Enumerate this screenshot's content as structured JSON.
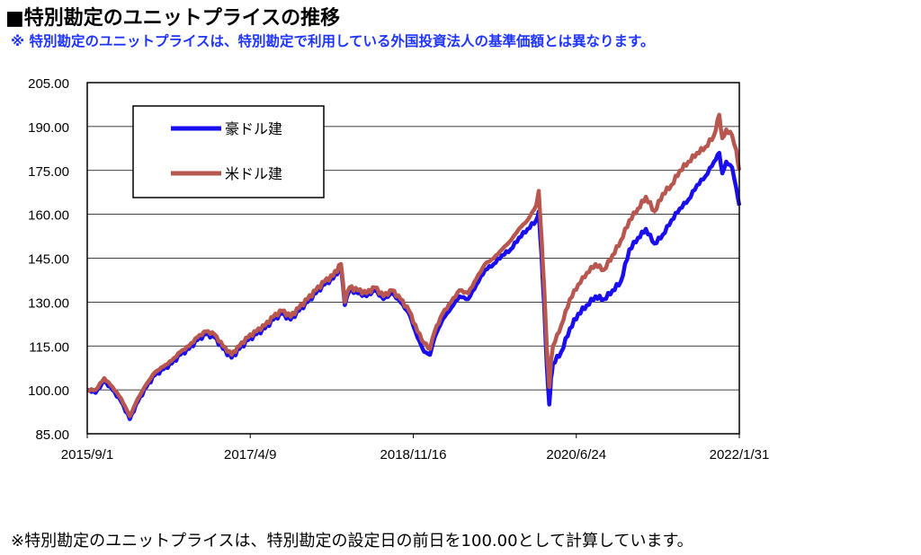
{
  "header": {
    "title": "■特別勘定のユニットプライスの推移",
    "subtitle": "※ 特別勘定のユニットプライスは、特別勘定で利用している外国投資法人の基準価額とは異なります。"
  },
  "footnote": "※特別勘定のユニットプライスは、特別勘定の設定日の前日を100.00として計算しています。",
  "chart_data": {
    "type": "line",
    "title": "",
    "xlabel": "",
    "ylabel": "",
    "x_ticks": [
      "2015/9/1",
      "2017/4/9",
      "2018/11/16",
      "2020/6/24",
      "2022/1/31"
    ],
    "y_ticks": [
      "85.00",
      "100.00",
      "115.00",
      "130.00",
      "145.00",
      "160.00",
      "175.00",
      "190.00",
      "205.00"
    ],
    "ylim": [
      85,
      205
    ],
    "xlim": [
      "2015-09-01",
      "2022-01-31"
    ],
    "grid": true,
    "legend_position": "top-left",
    "series": [
      {
        "name": "豪ドル建",
        "color": "#1a0df0",
        "points": [
          [
            "2015-09-01",
            100
          ],
          [
            "2015-10-01",
            99
          ],
          [
            "2015-11-01",
            103
          ],
          [
            "2015-12-01",
            100
          ],
          [
            "2016-01-01",
            96
          ],
          [
            "2016-02-01",
            90
          ],
          [
            "2016-03-01",
            96
          ],
          [
            "2016-04-01",
            101
          ],
          [
            "2016-05-01",
            105
          ],
          [
            "2016-06-01",
            107
          ],
          [
            "2016-07-01",
            109
          ],
          [
            "2016-08-01",
            112
          ],
          [
            "2016-09-01",
            114
          ],
          [
            "2016-10-01",
            117
          ],
          [
            "2016-11-01",
            119
          ],
          [
            "2016-12-01",
            118
          ],
          [
            "2017-01-01",
            114
          ],
          [
            "2017-02-01",
            111
          ],
          [
            "2017-03-01",
            114
          ],
          [
            "2017-04-01",
            117
          ],
          [
            "2017-05-01",
            119
          ],
          [
            "2017-06-01",
            121
          ],
          [
            "2017-07-01",
            124
          ],
          [
            "2017-08-01",
            126
          ],
          [
            "2017-09-01",
            124
          ],
          [
            "2017-10-01",
            127
          ],
          [
            "2017-11-01",
            130
          ],
          [
            "2017-12-01",
            133
          ],
          [
            "2018-01-01",
            136
          ],
          [
            "2018-02-01",
            138
          ],
          [
            "2018-03-01",
            142
          ],
          [
            "2018-03-15",
            129
          ],
          [
            "2018-04-01",
            134
          ],
          [
            "2018-05-01",
            133
          ],
          [
            "2018-06-01",
            132
          ],
          [
            "2018-07-01",
            134
          ],
          [
            "2018-08-01",
            131
          ],
          [
            "2018-09-01",
            133
          ],
          [
            "2018-10-01",
            130
          ],
          [
            "2018-11-01",
            126
          ],
          [
            "2018-12-01",
            118
          ],
          [
            "2018-12-25",
            113
          ],
          [
            "2019-01-15",
            112
          ],
          [
            "2019-02-01",
            118
          ],
          [
            "2019-03-01",
            124
          ],
          [
            "2019-04-01",
            128
          ],
          [
            "2019-05-01",
            132
          ],
          [
            "2019-06-01",
            131
          ],
          [
            "2019-07-01",
            136
          ],
          [
            "2019-08-01",
            141
          ],
          [
            "2019-09-01",
            143
          ],
          [
            "2019-10-01",
            146
          ],
          [
            "2019-11-01",
            148
          ],
          [
            "2019-12-01",
            152
          ],
          [
            "2020-01-01",
            155
          ],
          [
            "2020-02-01",
            158
          ],
          [
            "2020-02-10",
            161
          ],
          [
            "2020-02-20",
            146
          ],
          [
            "2020-03-01",
            128
          ],
          [
            "2020-03-10",
            108
          ],
          [
            "2020-03-19",
            95
          ],
          [
            "2020-03-25",
            104
          ],
          [
            "2020-04-01",
            109
          ],
          [
            "2020-05-01",
            113
          ],
          [
            "2020-06-01",
            121
          ],
          [
            "2020-07-01",
            126
          ],
          [
            "2020-08-01",
            129
          ],
          [
            "2020-09-01",
            132
          ],
          [
            "2020-10-01",
            131
          ],
          [
            "2020-11-01",
            134
          ],
          [
            "2020-12-01",
            137
          ],
          [
            "2021-01-01",
            148
          ],
          [
            "2021-02-01",
            152
          ],
          [
            "2021-03-01",
            155
          ],
          [
            "2021-04-01",
            150
          ],
          [
            "2021-05-01",
            153
          ],
          [
            "2021-06-01",
            158
          ],
          [
            "2021-07-01",
            162
          ],
          [
            "2021-08-01",
            165
          ],
          [
            "2021-09-01",
            170
          ],
          [
            "2021-10-01",
            173
          ],
          [
            "2021-11-01",
            178
          ],
          [
            "2021-11-20",
            181
          ],
          [
            "2021-12-01",
            174
          ],
          [
            "2021-12-15",
            178
          ],
          [
            "2022-01-05",
            176
          ],
          [
            "2022-01-20",
            169
          ],
          [
            "2022-01-31",
            163
          ]
        ]
      },
      {
        "name": "米ドル建",
        "color": "#b8574f",
        "points": [
          [
            "2015-09-01",
            100
          ],
          [
            "2015-10-01",
            100
          ],
          [
            "2015-11-01",
            104
          ],
          [
            "2015-12-01",
            101
          ],
          [
            "2016-01-01",
            97
          ],
          [
            "2016-02-01",
            91
          ],
          [
            "2016-03-01",
            97
          ],
          [
            "2016-04-01",
            102
          ],
          [
            "2016-05-01",
            106
          ],
          [
            "2016-06-01",
            108
          ],
          [
            "2016-07-01",
            110
          ],
          [
            "2016-08-01",
            113
          ],
          [
            "2016-09-01",
            115
          ],
          [
            "2016-10-01",
            118
          ],
          [
            "2016-11-01",
            120
          ],
          [
            "2016-12-01",
            119
          ],
          [
            "2017-01-01",
            115
          ],
          [
            "2017-02-01",
            112
          ],
          [
            "2017-03-01",
            115
          ],
          [
            "2017-04-01",
            118
          ],
          [
            "2017-05-01",
            120
          ],
          [
            "2017-06-01",
            122
          ],
          [
            "2017-07-01",
            125
          ],
          [
            "2017-08-01",
            127
          ],
          [
            "2017-09-01",
            125
          ],
          [
            "2017-10-01",
            128
          ],
          [
            "2017-11-01",
            131
          ],
          [
            "2017-12-01",
            134
          ],
          [
            "2018-01-01",
            137
          ],
          [
            "2018-02-01",
            139
          ],
          [
            "2018-03-01",
            143
          ],
          [
            "2018-03-15",
            130
          ],
          [
            "2018-04-01",
            135
          ],
          [
            "2018-05-01",
            134
          ],
          [
            "2018-06-01",
            133
          ],
          [
            "2018-07-01",
            135
          ],
          [
            "2018-08-01",
            132
          ],
          [
            "2018-09-01",
            134
          ],
          [
            "2018-10-01",
            131
          ],
          [
            "2018-11-01",
            127
          ],
          [
            "2018-12-01",
            120
          ],
          [
            "2018-12-25",
            116
          ],
          [
            "2019-01-15",
            114
          ],
          [
            "2019-02-01",
            120
          ],
          [
            "2019-03-01",
            126
          ],
          [
            "2019-04-01",
            130
          ],
          [
            "2019-05-01",
            134
          ],
          [
            "2019-06-01",
            133
          ],
          [
            "2019-07-01",
            138
          ],
          [
            "2019-08-01",
            143
          ],
          [
            "2019-09-01",
            145
          ],
          [
            "2019-10-01",
            148
          ],
          [
            "2019-11-01",
            151
          ],
          [
            "2019-12-01",
            155
          ],
          [
            "2020-01-01",
            158
          ],
          [
            "2020-02-01",
            163
          ],
          [
            "2020-02-10",
            168
          ],
          [
            "2020-02-20",
            152
          ],
          [
            "2020-03-01",
            134
          ],
          [
            "2020-03-10",
            114
          ],
          [
            "2020-03-19",
            101
          ],
          [
            "2020-03-25",
            110
          ],
          [
            "2020-04-01",
            115
          ],
          [
            "2020-05-01",
            122
          ],
          [
            "2020-06-01",
            131
          ],
          [
            "2020-07-01",
            136
          ],
          [
            "2020-08-01",
            140
          ],
          [
            "2020-09-01",
            143
          ],
          [
            "2020-10-01",
            141
          ],
          [
            "2020-11-01",
            146
          ],
          [
            "2020-12-01",
            151
          ],
          [
            "2021-01-01",
            158
          ],
          [
            "2021-02-01",
            162
          ],
          [
            "2021-03-01",
            166
          ],
          [
            "2021-04-01",
            161
          ],
          [
            "2021-05-01",
            167
          ],
          [
            "2021-06-01",
            170
          ],
          [
            "2021-07-01",
            175
          ],
          [
            "2021-08-01",
            178
          ],
          [
            "2021-09-01",
            181
          ],
          [
            "2021-10-01",
            183
          ],
          [
            "2021-11-01",
            187
          ],
          [
            "2021-11-20",
            194
          ],
          [
            "2021-12-01",
            186
          ],
          [
            "2021-12-15",
            189
          ],
          [
            "2022-01-05",
            187
          ],
          [
            "2022-01-20",
            182
          ],
          [
            "2022-01-31",
            175
          ]
        ]
      }
    ]
  }
}
